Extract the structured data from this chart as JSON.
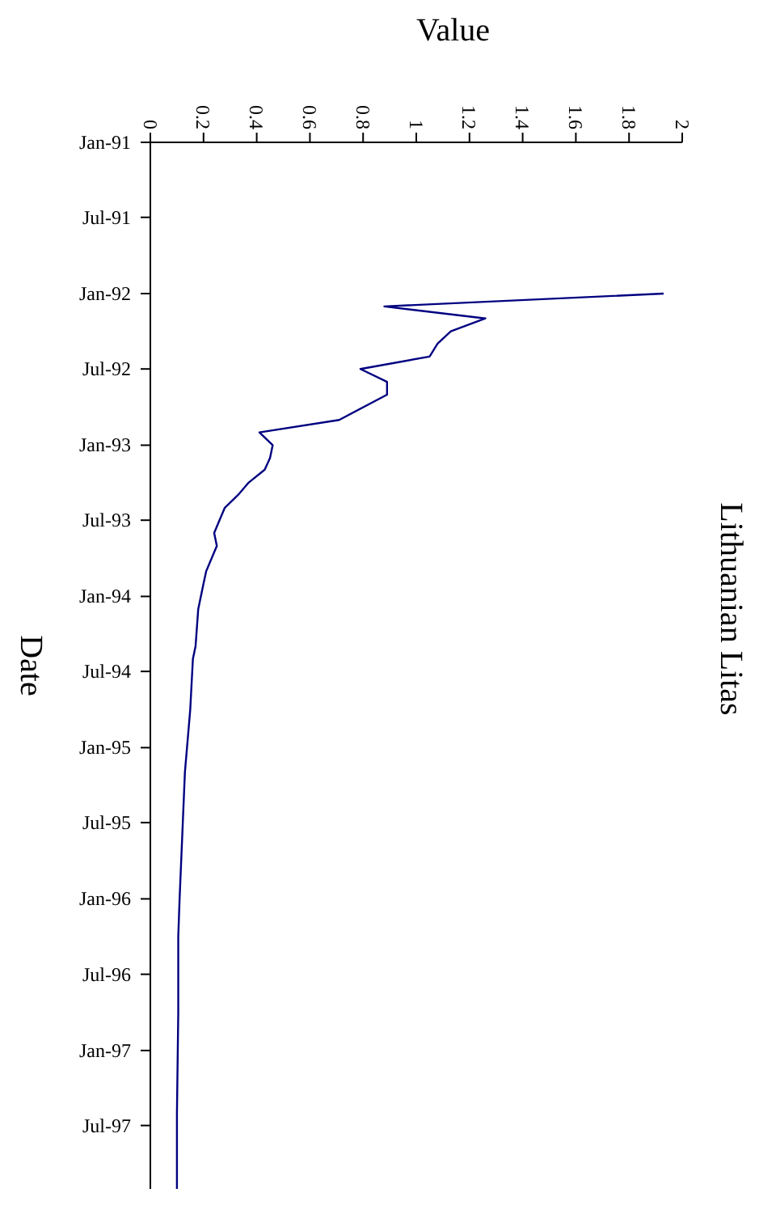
{
  "chart_data": {
    "type": "line",
    "orientation": "horizontal",
    "title": "Lithuanian Litas",
    "xlabel": "Value",
    "ylabel": "Date",
    "x": [
      "1992-01",
      "1992-02",
      "1992-03",
      "1992-04",
      "1992-05",
      "1992-06",
      "1992-07",
      "1992-08",
      "1992-09",
      "1992-11",
      "1992-12",
      "1993-01",
      "1993-02",
      "1993-03",
      "1993-04",
      "1993-05",
      "1993-06",
      "1993-07",
      "1993-08",
      "1993-09",
      "1993-11",
      "1993-12",
      "1994-02",
      "1994-05",
      "1994-06",
      "1994-10",
      "1995-03",
      "1996-01",
      "1996-04",
      "1996-10",
      "1997-06",
      "1997-12"
    ],
    "series": [
      {
        "color": "#000080",
        "values": [
          1.93,
          0.88,
          1.26,
          1.13,
          1.08,
          1.05,
          0.79,
          0.89,
          0.89,
          0.71,
          0.41,
          0.46,
          0.45,
          0.43,
          0.37,
          0.33,
          0.28,
          0.26,
          0.24,
          0.25,
          0.21,
          0.2,
          0.18,
          0.17,
          0.16,
          0.15,
          0.13,
          0.11,
          0.105,
          0.105,
          0.1,
          0.1
        ]
      }
    ],
    "xlim": [
      0,
      2
    ],
    "xticks": [
      0,
      {
        "value": 0.2,
        "label": "0.2"
      },
      {
        "value": 0.4,
        "label": "0.4"
      },
      {
        "value": 0.6,
        "label": "0.6"
      },
      {
        "value": 0.8,
        "label": "0.8"
      },
      1,
      {
        "value": 1.2,
        "label": "1.2"
      },
      {
        "value": 1.4,
        "label": "1.4"
      },
      {
        "value": 1.6,
        "label": "1.6"
      },
      {
        "value": 1.8,
        "label": "1.8"
      },
      2
    ],
    "ylim": [
      "1997-12",
      "1991-01"
    ],
    "yticks": [
      {
        "value": "1991-01",
        "label": "Jan-91"
      },
      {
        "value": "1991-07",
        "label": "Jul-91"
      },
      {
        "value": "1992-01",
        "label": "Jan-92"
      },
      {
        "value": "1992-07",
        "label": "Jul-92"
      },
      {
        "value": "1993-01",
        "label": "Jan-93"
      },
      {
        "value": "1993-07",
        "label": "Jul-93"
      },
      {
        "value": "1994-01",
        "label": "Jan-94"
      },
      {
        "value": "1994-07",
        "label": "Jul-94"
      },
      {
        "value": "1995-01",
        "label": "Jan-95"
      },
      {
        "value": "1995-07",
        "label": "Jul-95"
      },
      {
        "value": "1996-01",
        "label": "Jan-96"
      },
      {
        "value": "1996-07",
        "label": "Jul-96"
      },
      {
        "value": "1997-01",
        "label": "Jan-97"
      },
      {
        "value": "1997-07",
        "label": "Jul-97"
      }
    ],
    "grid": false,
    "legend": false,
    "marker": "none",
    "line_style": "solid"
  }
}
